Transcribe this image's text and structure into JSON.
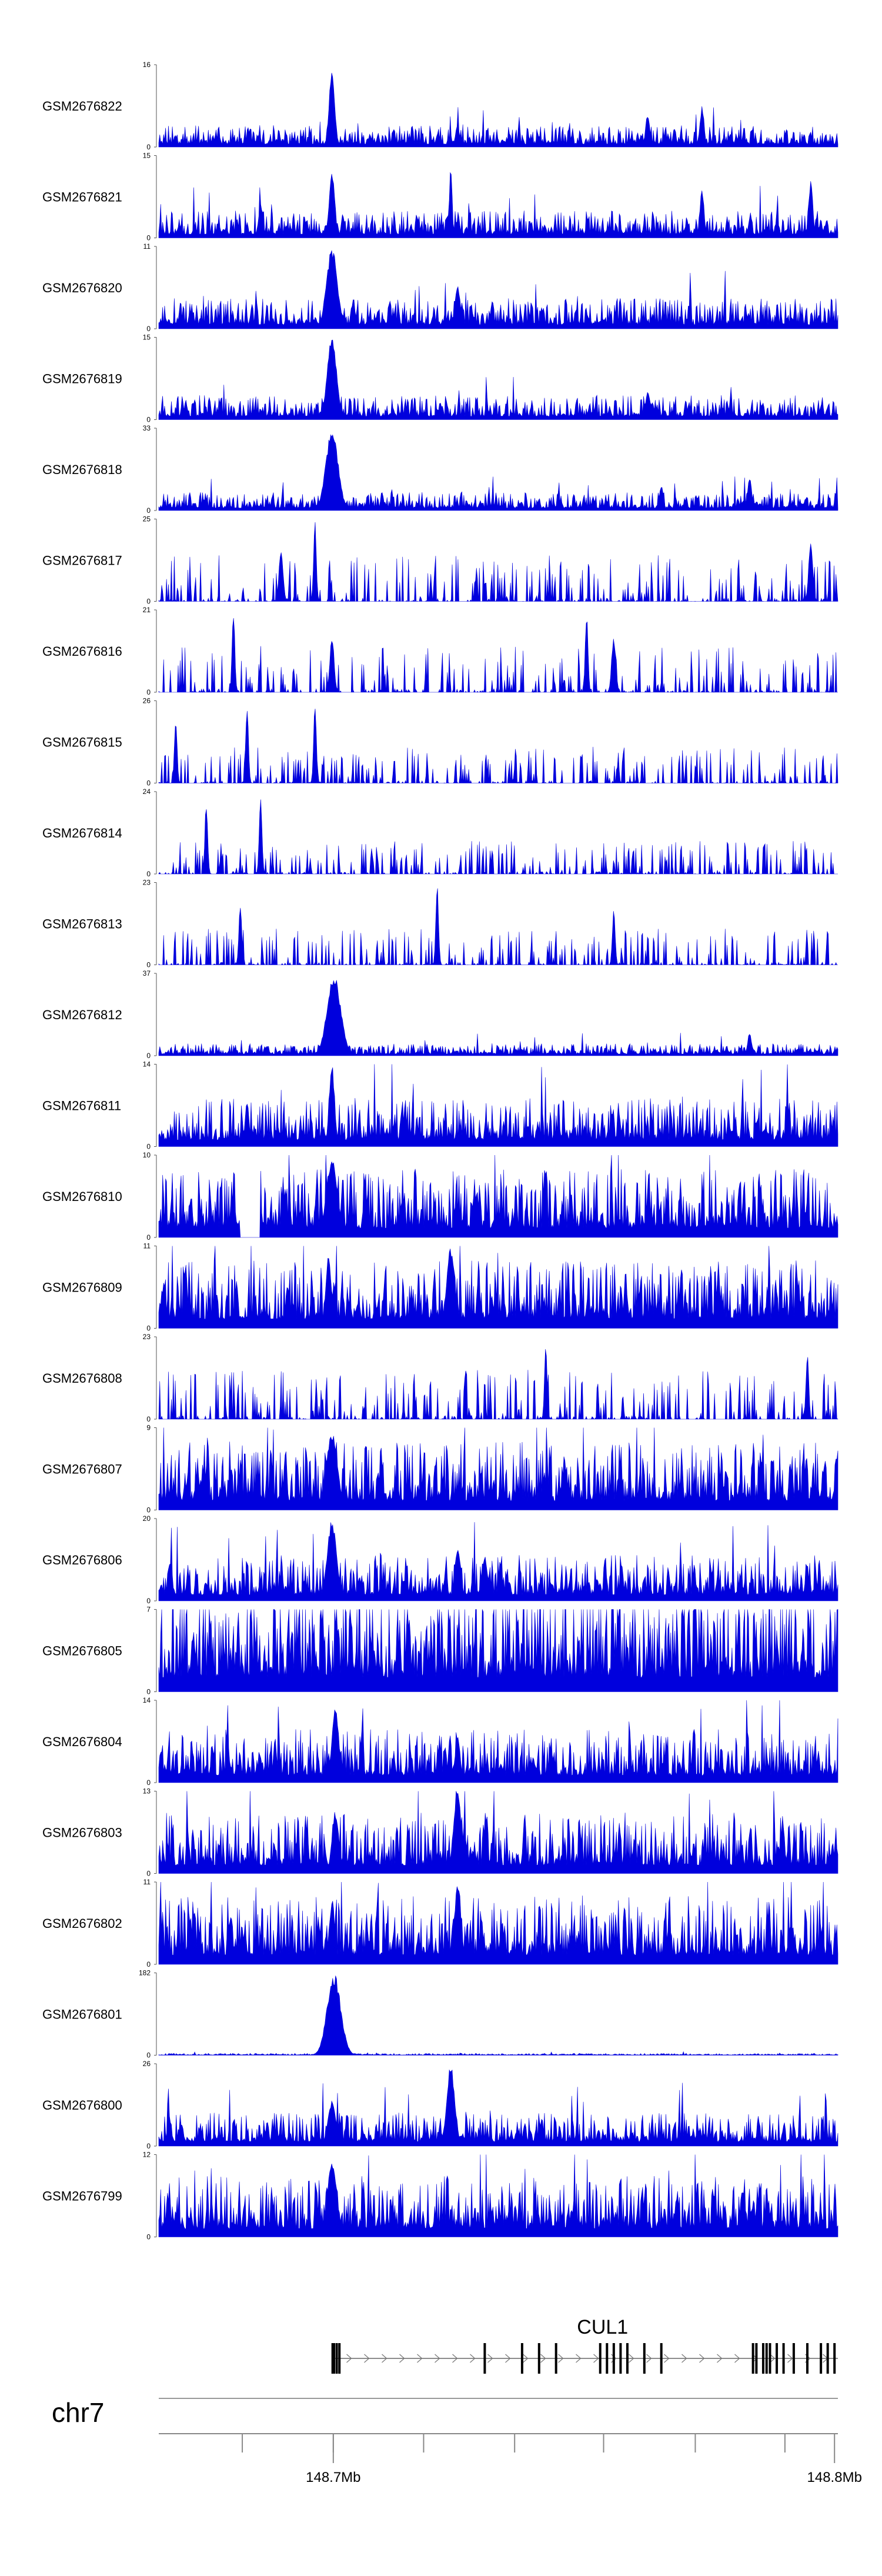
{
  "chart_data": {
    "type": "area",
    "series_color": "#0000dd",
    "tracks": [
      {
        "name": "GSM2676822",
        "ymax": 16,
        "peaks": [
          {
            "pos": 0.255,
            "h": 1.0,
            "w": 0.004
          },
          {
            "pos": 0.44,
            "h": 0.28,
            "w": 0.003
          },
          {
            "pos": 0.8,
            "h": 0.5,
            "w": 0.003
          },
          {
            "pos": 0.72,
            "h": 0.42,
            "w": 0.003
          }
        ],
        "gaps": [],
        "base": 0.14,
        "seed": 11
      },
      {
        "name": "GSM2676821",
        "ymax": 15,
        "peaks": [
          {
            "pos": 0.255,
            "h": 0.85,
            "w": 0.004
          },
          {
            "pos": 0.43,
            "h": 0.88,
            "w": 0.002
          },
          {
            "pos": 0.8,
            "h": 0.62,
            "w": 0.003
          },
          {
            "pos": 0.96,
            "h": 0.72,
            "w": 0.003
          },
          {
            "pos": 0.15,
            "h": 0.45,
            "w": 0.003
          }
        ],
        "gaps": [],
        "base": 0.18,
        "seed": 22
      },
      {
        "name": "GSM2676820",
        "ymax": 11,
        "peaks": [
          {
            "pos": 0.255,
            "h": 1.0,
            "w": 0.008
          },
          {
            "pos": 0.44,
            "h": 0.55,
            "w": 0.004
          }
        ],
        "gaps": [],
        "base": 0.2,
        "seed": 33
      },
      {
        "name": "GSM2676819",
        "ymax": 15,
        "peaks": [
          {
            "pos": 0.255,
            "h": 1.0,
            "w": 0.007
          },
          {
            "pos": 0.72,
            "h": 0.38,
            "w": 0.003
          }
        ],
        "gaps": [],
        "base": 0.16,
        "seed": 44
      },
      {
        "name": "GSM2676818",
        "ymax": 33,
        "peaks": [
          {
            "pos": 0.255,
            "h": 1.0,
            "w": 0.009
          },
          {
            "pos": 0.87,
            "h": 0.42,
            "w": 0.003
          },
          {
            "pos": 0.74,
            "h": 0.32,
            "w": 0.003
          }
        ],
        "gaps": [],
        "base": 0.12,
        "seed": 55
      },
      {
        "name": "GSM2676817",
        "ymax": 25,
        "peaks": [
          {
            "pos": 0.23,
            "h": 1.0,
            "w": 0.002
          },
          {
            "pos": 0.96,
            "h": 0.75,
            "w": 0.003
          },
          {
            "pos": 0.18,
            "h": 0.62,
            "w": 0.003
          }
        ],
        "gaps": [],
        "base": 0.28,
        "seed": 66,
        "sparse": true
      },
      {
        "name": "GSM2676816",
        "ymax": 21,
        "peaks": [
          {
            "pos": 0.11,
            "h": 1.0,
            "w": 0.002
          },
          {
            "pos": 0.63,
            "h": 1.0,
            "w": 0.002
          },
          {
            "pos": 0.255,
            "h": 0.72,
            "w": 0.003
          },
          {
            "pos": 0.67,
            "h": 0.68,
            "w": 0.003
          }
        ],
        "gaps": [],
        "base": 0.28,
        "seed": 77,
        "sparse": true
      },
      {
        "name": "GSM2676815",
        "ymax": 26,
        "peaks": [
          {
            "pos": 0.13,
            "h": 1.0,
            "w": 0.002
          },
          {
            "pos": 0.23,
            "h": 1.0,
            "w": 0.002
          },
          {
            "pos": 0.025,
            "h": 0.8,
            "w": 0.002
          }
        ],
        "gaps": [],
        "base": 0.22,
        "seed": 88,
        "sparse": true
      },
      {
        "name": "GSM2676814",
        "ymax": 24,
        "peaks": [
          {
            "pos": 0.07,
            "h": 0.9,
            "w": 0.002
          },
          {
            "pos": 0.15,
            "h": 1.0,
            "w": 0.002
          }
        ],
        "gaps": [],
        "base": 0.2,
        "seed": 99,
        "sparse": true
      },
      {
        "name": "GSM2676813",
        "ymax": 23,
        "peaks": [
          {
            "pos": 0.41,
            "h": 1.0,
            "w": 0.002
          },
          {
            "pos": 0.12,
            "h": 0.8,
            "w": 0.002
          },
          {
            "pos": 0.67,
            "h": 0.75,
            "w": 0.002
          }
        ],
        "gaps": [],
        "base": 0.22,
        "seed": 111,
        "sparse": true
      },
      {
        "name": "GSM2676812",
        "ymax": 37,
        "peaks": [
          {
            "pos": 0.258,
            "h": 1.0,
            "w": 0.01
          },
          {
            "pos": 0.87,
            "h": 0.28,
            "w": 0.003
          }
        ],
        "gaps": [],
        "base": 0.08,
        "seed": 122
      },
      {
        "name": "GSM2676811",
        "ymax": 14,
        "peaks": [
          {
            "pos": 0.255,
            "h": 1.0,
            "w": 0.004
          },
          {
            "pos": 0.13,
            "h": 0.55,
            "w": 0.003
          }
        ],
        "gaps": [],
        "base": 0.32,
        "seed": 133
      },
      {
        "name": "GSM2676810",
        "ymax": 10,
        "peaks": [
          {
            "pos": 0.255,
            "h": 1.0,
            "w": 0.008
          }
        ],
        "gaps": [
          [
            0.12,
            0.15
          ]
        ],
        "base": 0.45,
        "seed": 144
      },
      {
        "name": "GSM2676809",
        "ymax": 11,
        "peaks": [
          {
            "pos": 0.43,
            "h": 1.0,
            "w": 0.006
          },
          {
            "pos": 0.25,
            "h": 0.9,
            "w": 0.004
          }
        ],
        "gaps": [],
        "base": 0.45,
        "seed": 155
      },
      {
        "name": "GSM2676808",
        "ymax": 23,
        "peaks": [
          {
            "pos": 0.955,
            "h": 0.85,
            "w": 0.002
          },
          {
            "pos": 0.57,
            "h": 0.9,
            "w": 0.002
          }
        ],
        "gaps": [],
        "base": 0.3,
        "seed": 166,
        "sparse": true
      },
      {
        "name": "GSM2676807",
        "ymax": 9,
        "peaks": [
          {
            "pos": 0.255,
            "h": 1.0,
            "w": 0.008
          }
        ],
        "gaps": [],
        "base": 0.45,
        "seed": 177
      },
      {
        "name": "GSM2676806",
        "ymax": 20,
        "peaks": [
          {
            "pos": 0.255,
            "h": 1.0,
            "w": 0.007
          },
          {
            "pos": 0.44,
            "h": 0.7,
            "w": 0.004
          },
          {
            "pos": 0.48,
            "h": 0.58,
            "w": 0.004
          }
        ],
        "gaps": [],
        "base": 0.3,
        "seed": 188
      },
      {
        "name": "GSM2676805",
        "ymax": 7,
        "peaks": [],
        "gaps": [],
        "base": 0.7,
        "seed": 199
      },
      {
        "name": "GSM2676804",
        "ymax": 14,
        "peaks": [
          {
            "pos": 0.26,
            "h": 1.0,
            "w": 0.005
          },
          {
            "pos": 0.44,
            "h": 0.55,
            "w": 0.004
          }
        ],
        "gaps": [],
        "base": 0.35,
        "seed": 211
      },
      {
        "name": "GSM2676803",
        "ymax": 13,
        "peaks": [
          {
            "pos": 0.44,
            "h": 1.0,
            "w": 0.006
          },
          {
            "pos": 0.26,
            "h": 0.78,
            "w": 0.005
          }
        ],
        "gaps": [],
        "base": 0.4,
        "seed": 222
      },
      {
        "name": "GSM2676802",
        "ymax": 11,
        "peaks": [
          {
            "pos": 0.44,
            "h": 1.0,
            "w": 0.005
          },
          {
            "pos": 0.255,
            "h": 0.8,
            "w": 0.004
          }
        ],
        "gaps": [],
        "base": 0.45,
        "seed": 233
      },
      {
        "name": "GSM2676801",
        "ymax": 182,
        "peaks": [
          {
            "pos": 0.258,
            "h": 1.0,
            "w": 0.01
          }
        ],
        "gaps": [],
        "base": 0.012,
        "seed": 244
      },
      {
        "name": "GSM2676800",
        "ymax": 26,
        "peaks": [
          {
            "pos": 0.43,
            "h": 1.0,
            "w": 0.006
          },
          {
            "pos": 0.255,
            "h": 0.55,
            "w": 0.006
          }
        ],
        "gaps": [],
        "base": 0.22,
        "seed": 255
      },
      {
        "name": "GSM2676799",
        "ymax": 12,
        "peaks": [
          {
            "pos": 0.255,
            "h": 0.95,
            "w": 0.007
          },
          {
            "pos": 0.86,
            "h": 0.62,
            "w": 0.004
          }
        ],
        "gaps": [],
        "base": 0.4,
        "seed": 266
      }
    ],
    "ymin_label": "0",
    "gene": {
      "name": "CUL1",
      "start_frac": 0.255,
      "end_frac": 1.0,
      "exons": [
        0.256,
        0.258,
        0.262,
        0.266,
        0.48,
        0.535,
        0.56,
        0.585,
        0.65,
        0.66,
        0.67,
        0.68,
        0.69,
        0.715,
        0.74,
        0.875,
        0.88,
        0.89,
        0.895,
        0.9,
        0.91,
        0.92,
        0.935,
        0.955,
        0.975,
        0.985,
        0.995
      ]
    },
    "chromosome": "chr7",
    "x_axis": {
      "ticks": [
        0.123,
        0.257,
        0.39,
        0.524,
        0.655,
        0.79,
        0.922
      ],
      "labels": [
        {
          "frac": 0.257,
          "text": "148.7Mb"
        },
        {
          "frac": 0.995,
          "text": "148.8Mb"
        }
      ]
    }
  }
}
